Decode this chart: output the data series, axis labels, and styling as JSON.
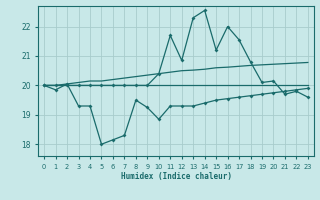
{
  "xlabel": "Humidex (Indice chaleur)",
  "bg_color": "#c8e8e8",
  "grid_color": "#a8cccc",
  "line_color": "#1a6b6b",
  "xlim": [
    -0.5,
    23.5
  ],
  "ylim": [
    17.6,
    22.7
  ],
  "yticks": [
    18,
    19,
    20,
    21,
    22
  ],
  "xticks": [
    0,
    1,
    2,
    3,
    4,
    5,
    6,
    7,
    8,
    9,
    10,
    11,
    12,
    13,
    14,
    15,
    16,
    17,
    18,
    19,
    20,
    21,
    22,
    23
  ],
  "line_spiky_x": [
    0,
    1,
    2,
    3,
    4,
    5,
    6,
    7,
    8,
    9,
    10,
    11,
    12,
    13,
    14,
    15,
    16,
    17,
    18,
    19,
    20,
    21,
    22,
    23
  ],
  "line_spiky_y": [
    20.0,
    20.0,
    20.0,
    20.0,
    20.0,
    20.0,
    20.0,
    20.0,
    20.0,
    20.0,
    20.4,
    21.7,
    20.85,
    22.3,
    22.55,
    21.2,
    22.0,
    21.55,
    20.8,
    20.1,
    20.15,
    19.7,
    19.8,
    19.6
  ],
  "line_flat_x": [
    0,
    1,
    2,
    3,
    4,
    5,
    6,
    7,
    8,
    9,
    10,
    11,
    12,
    13,
    14,
    15,
    16,
    17,
    18,
    19,
    20,
    21,
    22,
    23
  ],
  "line_flat_y": [
    20.0,
    20.0,
    20.0,
    20.0,
    20.0,
    20.0,
    20.0,
    20.0,
    20.0,
    20.0,
    20.0,
    20.0,
    20.0,
    20.0,
    20.0,
    20.0,
    20.0,
    20.0,
    20.0,
    20.0,
    20.0,
    20.0,
    20.0,
    20.0
  ],
  "line_low_x": [
    0,
    1,
    2,
    3,
    4,
    5,
    6,
    7,
    8,
    9,
    10,
    11,
    12,
    13,
    14,
    15,
    16,
    17,
    18,
    19,
    20,
    21,
    22,
    23
  ],
  "line_low_y": [
    20.0,
    19.85,
    20.05,
    19.3,
    19.3,
    18.0,
    18.15,
    18.3,
    19.5,
    19.25,
    18.85,
    19.3,
    19.3,
    19.3,
    19.4,
    19.5,
    19.55,
    19.6,
    19.65,
    19.7,
    19.75,
    19.8,
    19.85,
    19.9
  ],
  "line_upper_x": [
    0,
    1,
    2,
    3,
    4,
    5,
    6,
    7,
    8,
    9,
    10,
    11,
    12,
    13,
    14,
    15,
    16,
    17,
    18,
    19,
    20,
    21,
    22,
    23
  ],
  "line_upper_y": [
    20.0,
    20.0,
    20.05,
    20.1,
    20.15,
    20.15,
    20.2,
    20.25,
    20.3,
    20.35,
    20.4,
    20.45,
    20.5,
    20.52,
    20.55,
    20.6,
    20.62,
    20.65,
    20.68,
    20.7,
    20.72,
    20.74,
    20.76,
    20.78
  ]
}
